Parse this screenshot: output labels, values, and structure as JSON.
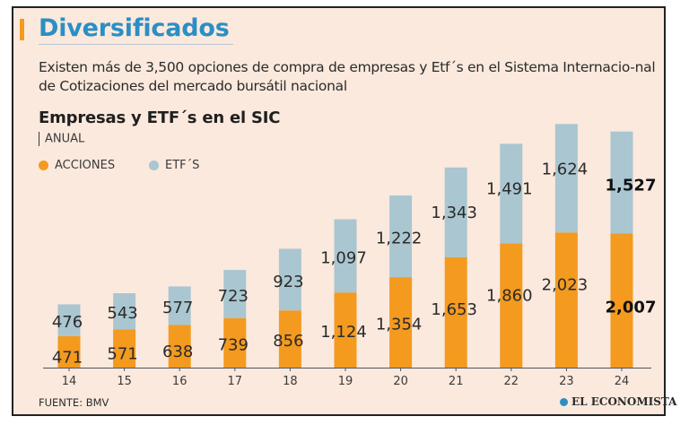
{
  "header": {
    "title": "Diversificados",
    "subtitle": "Existen más de 3,500 opciones de compra de empresas y Etf´s en el Sistema Internacio-nal de Cotizaciones del mercado bursátil nacional"
  },
  "colors": {
    "acciones": "#f39a1f",
    "etfs": "#a9c6d1",
    "title": "#2a8fc4",
    "background": "#fbe9dd"
  },
  "chart_data": {
    "type": "bar",
    "stacked": true,
    "title": "Empresas y ETF´s en el SIC",
    "period_label": "ANUAL",
    "legend": [
      {
        "name": "ACCIONES",
        "color": "#f39a1f"
      },
      {
        "name": "ETF´S",
        "color": "#a9c6d1"
      }
    ],
    "categories": [
      "14",
      "15",
      "16",
      "17",
      "18",
      "19",
      "20",
      "21",
      "22",
      "23",
      "24"
    ],
    "series": [
      {
        "name": "ACCIONES",
        "values": [
          471,
          571,
          638,
          739,
          856,
          1124,
          1354,
          1653,
          1860,
          2023,
          2007
        ],
        "labels": [
          "471",
          "571",
          "638",
          "739",
          "856",
          "1,124",
          "1,354",
          "1,653",
          "1,860",
          "2,023",
          "2,007"
        ]
      },
      {
        "name": "ETF´S",
        "values": [
          476,
          543,
          577,
          723,
          923,
          1097,
          1222,
          1343,
          1491,
          1624,
          1527
        ],
        "labels": [
          "476",
          "543",
          "577",
          "723",
          "923",
          "1,097",
          "1,222",
          "1,343",
          "1,491",
          "1,624",
          "1,527"
        ]
      }
    ],
    "highlight_last": true,
    "ylim": [
      0,
      3700
    ],
    "grid": false
  },
  "footer": {
    "source": "FUENTE: BMV",
    "brand": "EL ECONOMISTA"
  }
}
